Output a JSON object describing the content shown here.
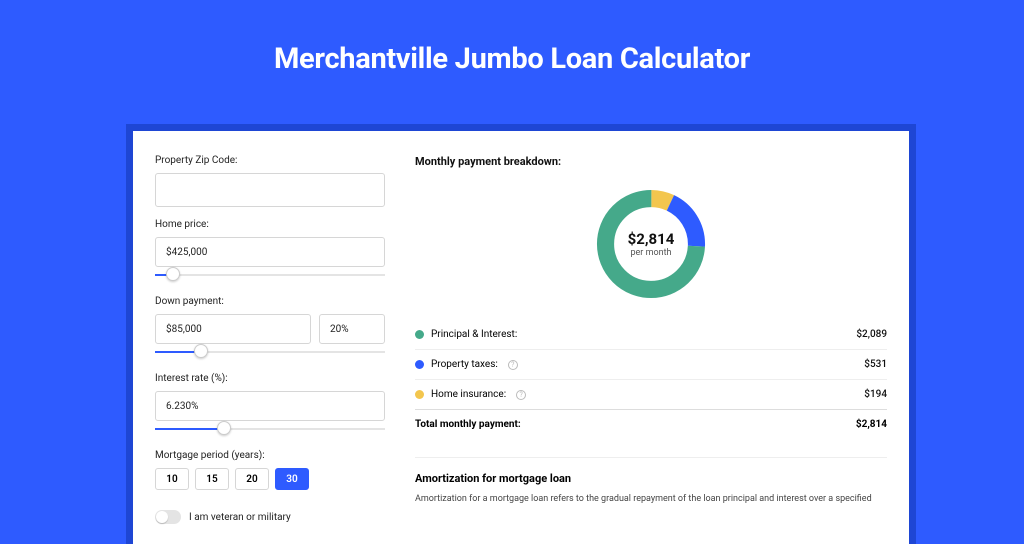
{
  "title": "Merchantville Jumbo Loan Calculator",
  "colors": {
    "page_bg": "#2e5bff",
    "card_border": "#1e46d4",
    "accent": "#2e5bff",
    "principal": "#45a98a",
    "taxes": "#2e5bff",
    "insurance": "#f3c64e"
  },
  "form": {
    "zip": {
      "label": "Property Zip Code:",
      "value": ""
    },
    "home_price": {
      "label": "Home price:",
      "value": "$425,000",
      "slider_pct": 8
    },
    "down_payment": {
      "label": "Down payment:",
      "value": "$85,000",
      "pct_value": "20%",
      "slider_pct": 20
    },
    "interest": {
      "label": "Interest rate (%):",
      "value": "6.230%",
      "slider_pct": 30
    },
    "period": {
      "label": "Mortgage period (years):",
      "options": [
        "10",
        "15",
        "20",
        "30"
      ],
      "active": "30"
    },
    "veteran": {
      "label": "I am veteran or military",
      "on": false
    }
  },
  "breakdown": {
    "title": "Monthly payment breakdown:",
    "center_value": "$2,814",
    "center_sub": "per month",
    "donut": {
      "principal_pct": 74.2,
      "taxes_pct": 18.9,
      "insurance_pct": 6.9
    },
    "items": [
      {
        "label": "Principal & Interest:",
        "amount": "$2,089",
        "color": "#45a98a",
        "has_info": false
      },
      {
        "label": "Property taxes:",
        "amount": "$531",
        "color": "#2e5bff",
        "has_info": true
      },
      {
        "label": "Home insurance:",
        "amount": "$194",
        "color": "#f3c64e",
        "has_info": true
      }
    ],
    "total_label": "Total monthly payment:",
    "total_amount": "$2,814"
  },
  "amortization": {
    "title": "Amortization for mortgage loan",
    "text": "Amortization for a mortgage loan refers to the gradual repayment of the loan principal and interest over a specified"
  }
}
